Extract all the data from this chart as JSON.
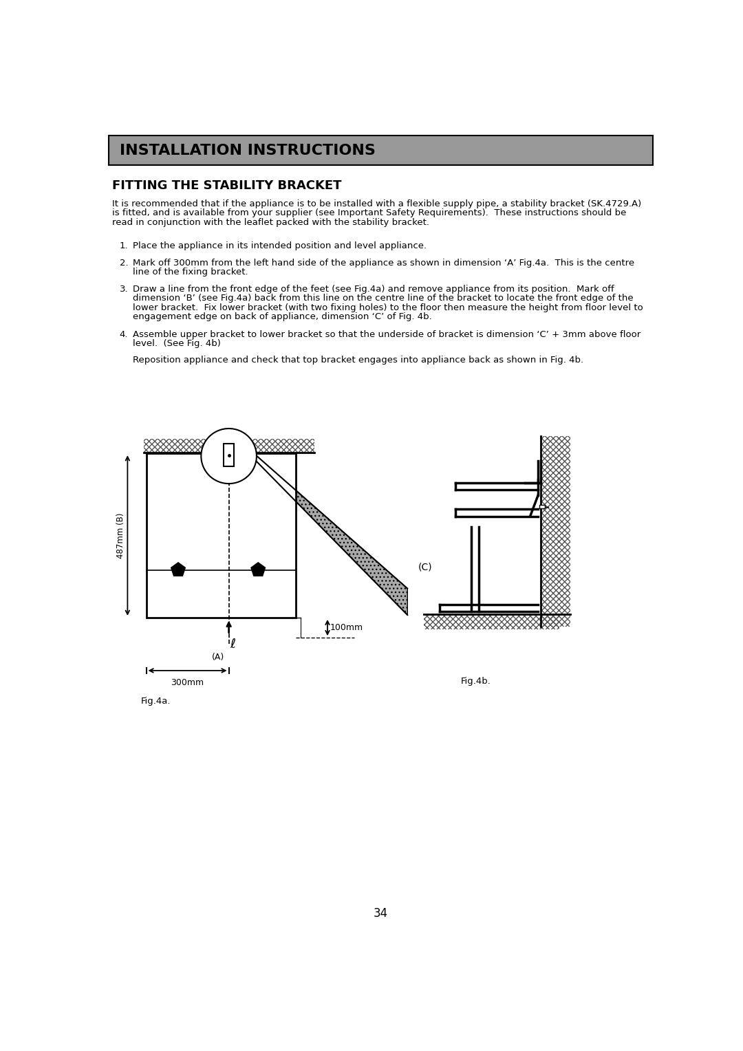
{
  "bg_color": "#ffffff",
  "header_bg": "#999999",
  "header_text": "INSTALLATION INSTRUCTIONS",
  "section_title": "FITTING THE STABILITY BRACKET",
  "intro_line1": "It is recommended that if the appliance is to be installed with a flexible supply pipe, a stability bracket (SK.4729.A)",
  "intro_line2": "is fitted, and is available from your supplier (see Important Safety Requirements).  These instructions should be",
  "intro_line3": "read in conjunction with the leaflet packed with the stability bracket.",
  "item1": "Place the appliance in its intended position and level appliance.",
  "item2a": "Mark off 300mm from the left hand side of the appliance as shown in dimension ‘A’ Fig.4a.  This is the centre",
  "item2b": "line of the fixing bracket.",
  "item3a": "Draw a line from the front edge of the feet (see Fig.4a) and remove appliance from its position.  Mark off",
  "item3b": "dimension ‘B’ (see Fig.4a) back from this line on the centre line of the bracket to locate the front edge of the",
  "item3c": "lower bracket.  Fix lower bracket (with two fixing holes) to the floor then measure the height from floor level to",
  "item3d": "engagement edge on back of appliance, dimension ‘C’ of Fig. 4b.",
  "item4a": "Assemble upper bracket to lower bracket so that the underside of bracket is dimension ‘C’ + 3mm above floor",
  "item4b": "level.  (See Fig. 4b)",
  "item4c": "Reposition appliance and check that top bracket engages into appliance back as shown in Fig. 4b.",
  "fig4a_label": "Fig.4a.",
  "fig4b_label": "Fig.4b.",
  "page_number": "34"
}
